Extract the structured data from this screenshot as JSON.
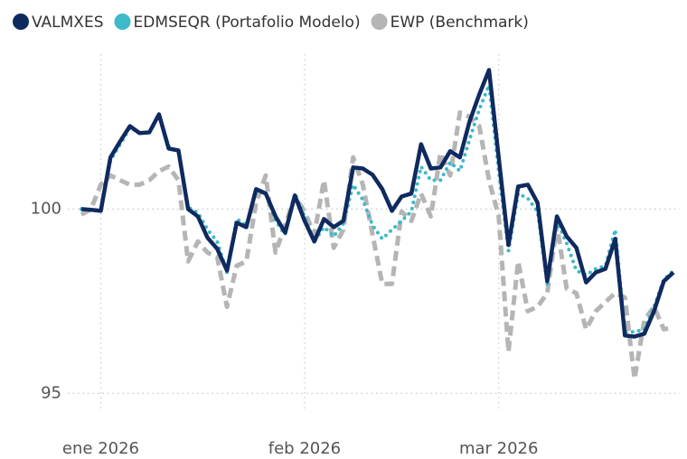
{
  "chart_data": {
    "type": "line",
    "categories": [
      null,
      null,
      "ene 2026",
      null,
      null,
      null,
      null,
      null,
      null,
      null,
      null,
      null,
      null,
      null,
      null,
      null,
      null,
      null,
      null,
      null,
      null,
      null,
      null,
      "feb 2026",
      null,
      null,
      null,
      null,
      null,
      null,
      null,
      null,
      null,
      null,
      null,
      null,
      null,
      null,
      null,
      null,
      null,
      null,
      null,
      "mar 2026",
      null,
      null,
      null,
      null,
      null,
      null,
      null,
      null,
      null,
      null,
      null,
      null,
      null,
      null,
      null,
      null,
      null,
      null
    ],
    "series": [
      {
        "name": "VALMXES",
        "color": "#0f2a5f",
        "line_style": "solid",
        "values": [
          100.0,
          99.98,
          99.95,
          101.4,
          101.84,
          102.25,
          102.06,
          102.08,
          102.57,
          101.64,
          101.59,
          100.0,
          99.8,
          99.22,
          98.92,
          98.33,
          99.63,
          99.51,
          100.54,
          100.42,
          99.8,
          99.36,
          100.37,
          99.68,
          99.12,
          99.73,
          99.51,
          99.68,
          101.13,
          101.1,
          100.93,
          100.54,
          99.95,
          100.34,
          100.42,
          101.76,
          101.1,
          101.13,
          101.57,
          101.4,
          102.38,
          103.11,
          103.77,
          101.4,
          99.02,
          100.61,
          100.66,
          100.17,
          98.04,
          99.8,
          99.26,
          98.95,
          98.01,
          98.28,
          98.38,
          99.19,
          96.57,
          96.54,
          96.62,
          97.23,
          98.04,
          98.28
        ]
      },
      {
        "name": "EDMSEQR (Portafolio Modelo)",
        "color": "#3db9c9",
        "line_style": "dotted",
        "values": [
          100.0,
          99.98,
          99.95,
          101.32,
          101.76,
          102.21,
          102.06,
          102.08,
          102.55,
          101.69,
          101.57,
          100.05,
          99.9,
          99.44,
          99.12,
          98.28,
          99.73,
          99.56,
          100.49,
          100.42,
          99.68,
          99.31,
          100.42,
          99.8,
          99.12,
          99.51,
          99.26,
          99.61,
          100.66,
          100.25,
          99.56,
          99.19,
          99.44,
          99.68,
          99.93,
          101.15,
          100.78,
          100.78,
          101.27,
          101.03,
          101.89,
          102.7,
          103.36,
          101.03,
          98.87,
          100.42,
          100.29,
          99.93,
          97.97,
          99.68,
          99.07,
          98.33,
          98.21,
          98.38,
          98.46,
          99.44,
          96.67,
          96.67,
          96.74,
          97.35,
          98.09,
          98.33
        ]
      },
      {
        "name": "EWP (Benchmark)",
        "color": "#b5b5b5",
        "line_style": "dashed",
        "values": [
          99.85,
          100.0,
          100.66,
          100.91,
          100.78,
          100.66,
          100.66,
          100.78,
          101.03,
          101.15,
          100.78,
          98.58,
          99.12,
          98.82,
          98.7,
          97.35,
          98.46,
          98.58,
          100.17,
          100.91,
          98.82,
          99.56,
          100.34,
          99.93,
          99.31,
          100.78,
          98.95,
          99.44,
          101.4,
          100.66,
          99.31,
          97.97,
          97.97,
          99.93,
          99.68,
          100.42,
          99.8,
          101.52,
          100.91,
          102.62,
          102.5,
          102.25,
          100.78,
          99.8,
          96.13,
          98.58,
          97.23,
          97.35,
          97.72,
          99.56,
          97.84,
          97.72,
          96.74,
          97.23,
          97.48,
          97.72,
          97.6,
          95.39,
          96.99,
          97.35,
          96.74,
          96.79
        ]
      }
    ],
    "ylim": [
      94.2,
      104.2
    ],
    "yticks": [
      95,
      100
    ],
    "grid": true,
    "legend": "top-left"
  }
}
